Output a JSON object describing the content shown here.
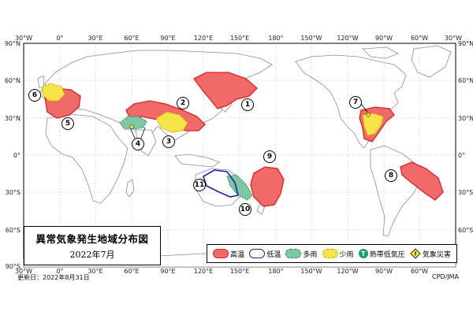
{
  "title": "異常気象発生地域分布図",
  "subtitle": "2022年7月",
  "updated": "更新日：2022年8月31日",
  "credit": "CPD/JMA",
  "lon_labels": [
    "30°W",
    "0°",
    "30°E",
    "60°E",
    "90°E",
    "120°E",
    "150°E",
    "180°",
    "150°W",
    "120°W",
    "90°W",
    "60°W",
    "30°W"
  ],
  "lat_labels": [
    "90°N",
    "60°N",
    "30°N",
    "0°",
    "30°S",
    "60°S",
    "90°S"
  ],
  "legend": {
    "high_temp": "高温",
    "low_temp": "低温",
    "heavy_rain": "多雨",
    "light_rain": "少雨",
    "tropical_cyclone": "熱帯低気圧",
    "tropical_symbol": "T",
    "disaster": "気象災害"
  },
  "colors": {
    "high_temp_fill": "#f06a6a",
    "high_temp_stroke": "#e02020",
    "low_temp_stroke": "#1a2a9a",
    "heavy_rain_fill": "#7fc6a4",
    "light_rain_fill": "#f5e34a",
    "disaster_fill": "#f5e34a",
    "land_stroke": "#8c8c8c"
  },
  "region_labels": [
    "1",
    "2",
    "3",
    "4",
    "5",
    "6",
    "7",
    "8",
    "9",
    "10",
    "11"
  ]
}
